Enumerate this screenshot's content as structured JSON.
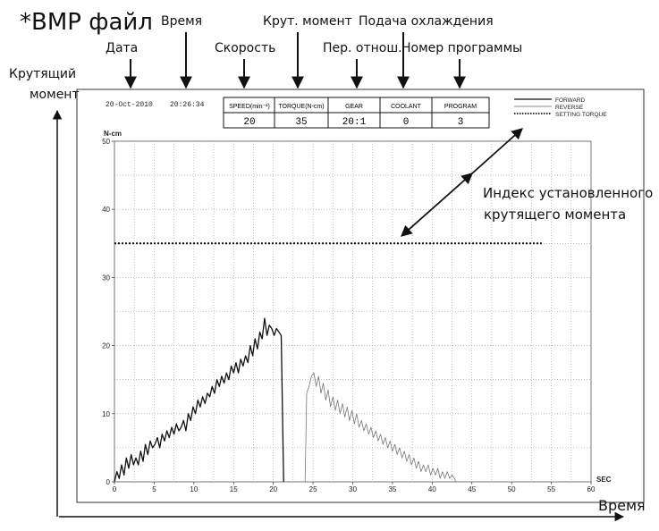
{
  "header": {
    "title": "*BMP файл",
    "date_caption": "Дата",
    "time_caption": "Время",
    "speed_caption": "Скорость",
    "torque_caption": "Крут. момент",
    "gear_caption": "Пер. отнош.",
    "coolant_caption": "Подача охлаждения",
    "program_caption": "Номер программы"
  },
  "side": {
    "torque_axis_line1": "Крутящий",
    "torque_axis_line2": "момент",
    "time_axis": "Время",
    "setting_index_line1": "Индекс установленного",
    "setting_index_line2": "крутящего момента"
  },
  "record": {
    "date": "20-Oct-2010",
    "time": "20:26:34",
    "table_headers": [
      "SPEED(min⁻¹)",
      "TORQUE(N-cm)",
      "GEAR",
      "COOLANT",
      "PROGRAM"
    ],
    "table_values": [
      "20",
      "35",
      "20:1",
      "0",
      "3"
    ]
  },
  "legend": {
    "forward": "FORWARD",
    "reverse": "REVERSE",
    "setting": "SETTING TORQUE"
  },
  "chart_data": {
    "type": "line",
    "ylabel": "N-cm",
    "xlabel": "SEC",
    "xlim": [
      0,
      60
    ],
    "ylim": [
      0,
      50
    ],
    "x_ticks": [
      0,
      5,
      10,
      15,
      20,
      25,
      30,
      35,
      40,
      45,
      50,
      55,
      60
    ],
    "y_ticks": [
      0,
      10,
      20,
      30,
      40,
      50
    ],
    "grid": true,
    "legend_position": "top-right",
    "setting_torque": {
      "value": 35,
      "x_range": [
        0,
        54
      ]
    },
    "series": [
      {
        "name": "FORWARD",
        "style": "solid",
        "x": [
          0,
          0.3,
          0.6,
          0.9,
          1.2,
          1.5,
          1.8,
          2.1,
          2.4,
          2.7,
          3.0,
          3.3,
          3.6,
          3.9,
          4.2,
          4.5,
          4.8,
          5.1,
          5.4,
          5.7,
          6.0,
          6.3,
          6.6,
          6.9,
          7.2,
          7.5,
          7.8,
          8.1,
          8.4,
          8.7,
          9.0,
          9.3,
          9.6,
          9.9,
          10.2,
          10.5,
          10.8,
          11.1,
          11.4,
          11.7,
          12.0,
          12.3,
          12.6,
          12.9,
          13.2,
          13.5,
          13.8,
          14.1,
          14.4,
          14.7,
          15.0,
          15.3,
          15.6,
          15.9,
          16.2,
          16.5,
          16.8,
          17.1,
          17.4,
          17.7,
          18.0,
          18.3,
          18.6,
          18.9,
          19.2,
          19.5,
          19.8,
          20.1,
          20.4,
          20.7,
          21.0,
          21.3
        ],
        "values": [
          0,
          1.5,
          0.5,
          2.5,
          1,
          3.5,
          2,
          4,
          2.5,
          3.5,
          2.5,
          4.5,
          3,
          5.5,
          4,
          6,
          5,
          5.5,
          6.5,
          5,
          7,
          6,
          7.5,
          6.5,
          8,
          7,
          8.5,
          7.5,
          8,
          9,
          7.5,
          10,
          9,
          11,
          10,
          12,
          11,
          12.5,
          11.5,
          13,
          12.5,
          14,
          13,
          15,
          14,
          15.5,
          14.5,
          16,
          15,
          17,
          16,
          17.5,
          16,
          18,
          17,
          18.5,
          17.5,
          20,
          18.5,
          21,
          19.5,
          22,
          21,
          24,
          21.5,
          23,
          22.5,
          21.5,
          22.5,
          22,
          21.5,
          0
        ]
      },
      {
        "name": "REVERSE",
        "style": "thin",
        "x": [
          24,
          24.2,
          24.5,
          24.8,
          25.1,
          25.4,
          25.7,
          26.0,
          26.3,
          26.6,
          26.9,
          27.2,
          27.5,
          27.8,
          28.1,
          28.4,
          28.7,
          29.0,
          29.3,
          29.6,
          29.9,
          30.2,
          30.5,
          30.8,
          31.1,
          31.4,
          31.7,
          32.0,
          32.3,
          32.6,
          32.9,
          33.2,
          33.5,
          33.8,
          34.1,
          34.4,
          34.7,
          35.0,
          35.3,
          35.6,
          35.9,
          36.2,
          36.5,
          36.8,
          37.1,
          37.4,
          37.7,
          38.0,
          38.3,
          38.6,
          38.9,
          39.2,
          39.5,
          39.8,
          40.1,
          40.4,
          40.7,
          41.0,
          41.3,
          41.6,
          41.9,
          42.2,
          42.5,
          42.8,
          43.0
        ],
        "values": [
          0,
          13,
          14,
          15.5,
          16,
          14,
          15.5,
          13,
          14.5,
          12,
          13.5,
          11,
          12.5,
          10.5,
          12,
          10,
          11.5,
          9.5,
          11,
          9,
          10.5,
          8.5,
          10,
          8,
          9,
          7.5,
          8.5,
          7,
          8,
          6.5,
          7.5,
          6,
          7,
          5.5,
          6.5,
          5,
          6,
          4.5,
          5.5,
          4,
          5,
          3.5,
          4.5,
          3,
          4,
          2.5,
          3.5,
          2,
          3,
          1.5,
          2.5,
          1.5,
          2.5,
          1,
          2,
          1,
          2,
          0.5,
          1.5,
          0.5,
          1.5,
          0.5,
          1,
          0.5,
          0
        ]
      }
    ]
  }
}
